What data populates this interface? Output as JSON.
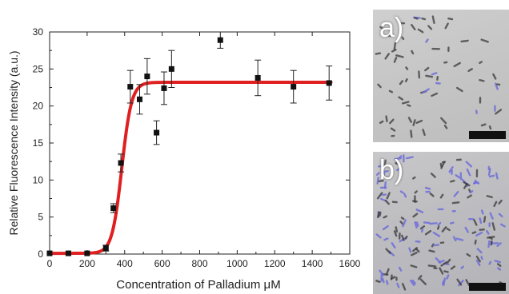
{
  "chart_data": {
    "type": "scatter",
    "xlabel": "Concentration of Palladium μM",
    "ylabel": "Relative Fluorescence Intensity (a.u.)",
    "xlim": [
      0,
      1600
    ],
    "ylim": [
      0,
      30
    ],
    "x_ticks": [
      "0",
      "200",
      "400",
      "600",
      "800",
      "1000",
      "1200",
      "1400",
      "1600"
    ],
    "y_ticks": [
      "0",
      "5",
      "10",
      "15",
      "20",
      "25",
      "30"
    ],
    "points": [
      {
        "x": 0,
        "y": 0.1,
        "err": 0
      },
      {
        "x": 100,
        "y": 0.1,
        "err": 0
      },
      {
        "x": 200,
        "y": 0.1,
        "err": 0
      },
      {
        "x": 300,
        "y": 0.8,
        "err": 0.4
      },
      {
        "x": 340,
        "y": 6.2,
        "err": 0.6
      },
      {
        "x": 380,
        "y": 12.3,
        "err": 1.2
      },
      {
        "x": 430,
        "y": 22.6,
        "err": 2.2
      },
      {
        "x": 480,
        "y": 20.9,
        "err": 2.0
      },
      {
        "x": 520,
        "y": 24.0,
        "err": 2.4
      },
      {
        "x": 570,
        "y": 16.4,
        "err": 1.6
      },
      {
        "x": 610,
        "y": 22.4,
        "err": 2.2
      },
      {
        "x": 650,
        "y": 25.0,
        "err": 2.5
      },
      {
        "x": 910,
        "y": 28.9,
        "err": 1.1
      },
      {
        "x": 1110,
        "y": 23.8,
        "err": 2.4
      },
      {
        "x": 1300,
        "y": 22.6,
        "err": 2.2
      },
      {
        "x": 1490,
        "y": 23.1,
        "err": 2.3
      }
    ],
    "fit": {
      "type": "sigmoid",
      "bottom": 0.1,
      "top": 23.2,
      "x50": 385,
      "slope": 26,
      "color": "#e02020"
    },
    "marker_color": "#111111"
  },
  "panels": [
    {
      "label": "a)"
    },
    {
      "label": "b)"
    }
  ]
}
